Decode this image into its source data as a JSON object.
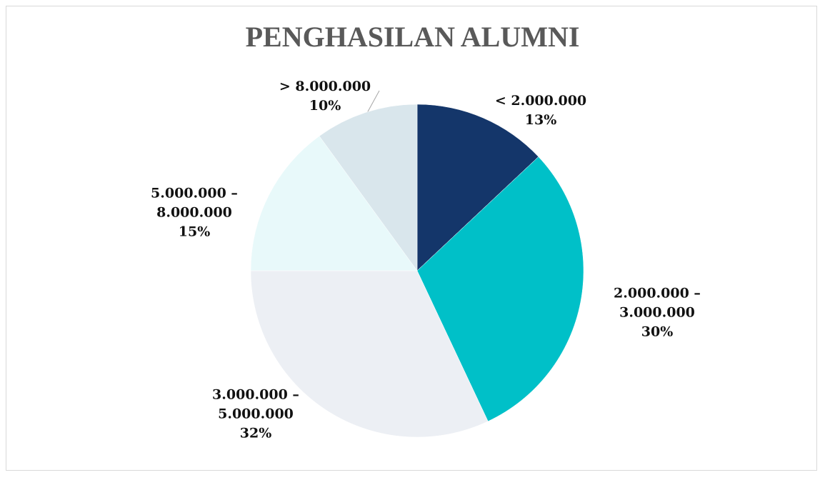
{
  "chart_data": {
    "type": "pie",
    "title": "PENGHASILAN ALUMNI",
    "categories": [
      "< 2.000.000",
      "2.000.000 – 3.000.000",
      "3.000.000 – 5.000.000",
      "5.000.000 – 8.000.000",
      "> 8.000.000"
    ],
    "values": [
      13,
      30,
      32,
      15,
      10
    ],
    "value_labels": [
      "13%",
      "30%",
      "32%",
      "15%",
      "10%"
    ],
    "colors": [
      "#14366a",
      "#00c0c8",
      "#eceff4",
      "#e8f9fa",
      "#d9e6ec"
    ]
  }
}
